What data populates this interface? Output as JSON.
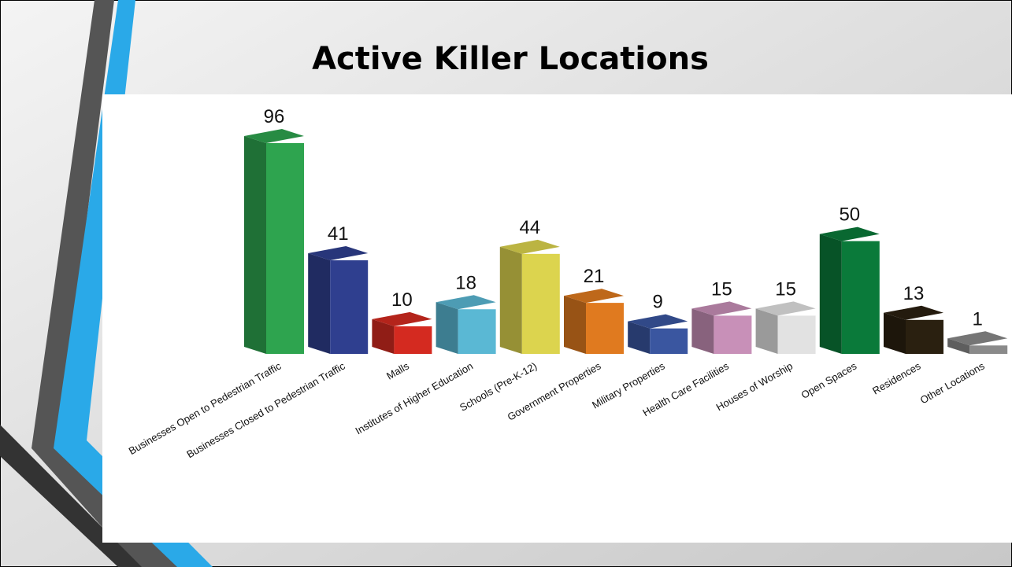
{
  "chart_data": {
    "type": "bar3d",
    "title": "Active Killer Locations",
    "categories": [
      "Businesses Open to Pedestrian Traffic",
      "Businesses Closed to Pedestrian Traffic",
      "Malls",
      "Institutes of Higher Education",
      "Schools (Pre-K-12)",
      "Government Properties",
      "Military Properties",
      "Health Care Facilities",
      "Houses of Worship",
      "Open Spaces",
      "Residences",
      "Other Locations"
    ],
    "values": [
      96,
      41,
      10,
      18,
      44,
      21,
      9,
      15,
      15,
      50,
      13,
      1
    ],
    "colors": [
      "#2ea44f",
      "#2f3f8f",
      "#d42a20",
      "#5ab8d4",
      "#dcd44e",
      "#e07a1f",
      "#3a56a0",
      "#c890b8",
      "#e2e2e2",
      "#0a7a3a",
      "#2a2010",
      "#8a8a8a"
    ]
  }
}
